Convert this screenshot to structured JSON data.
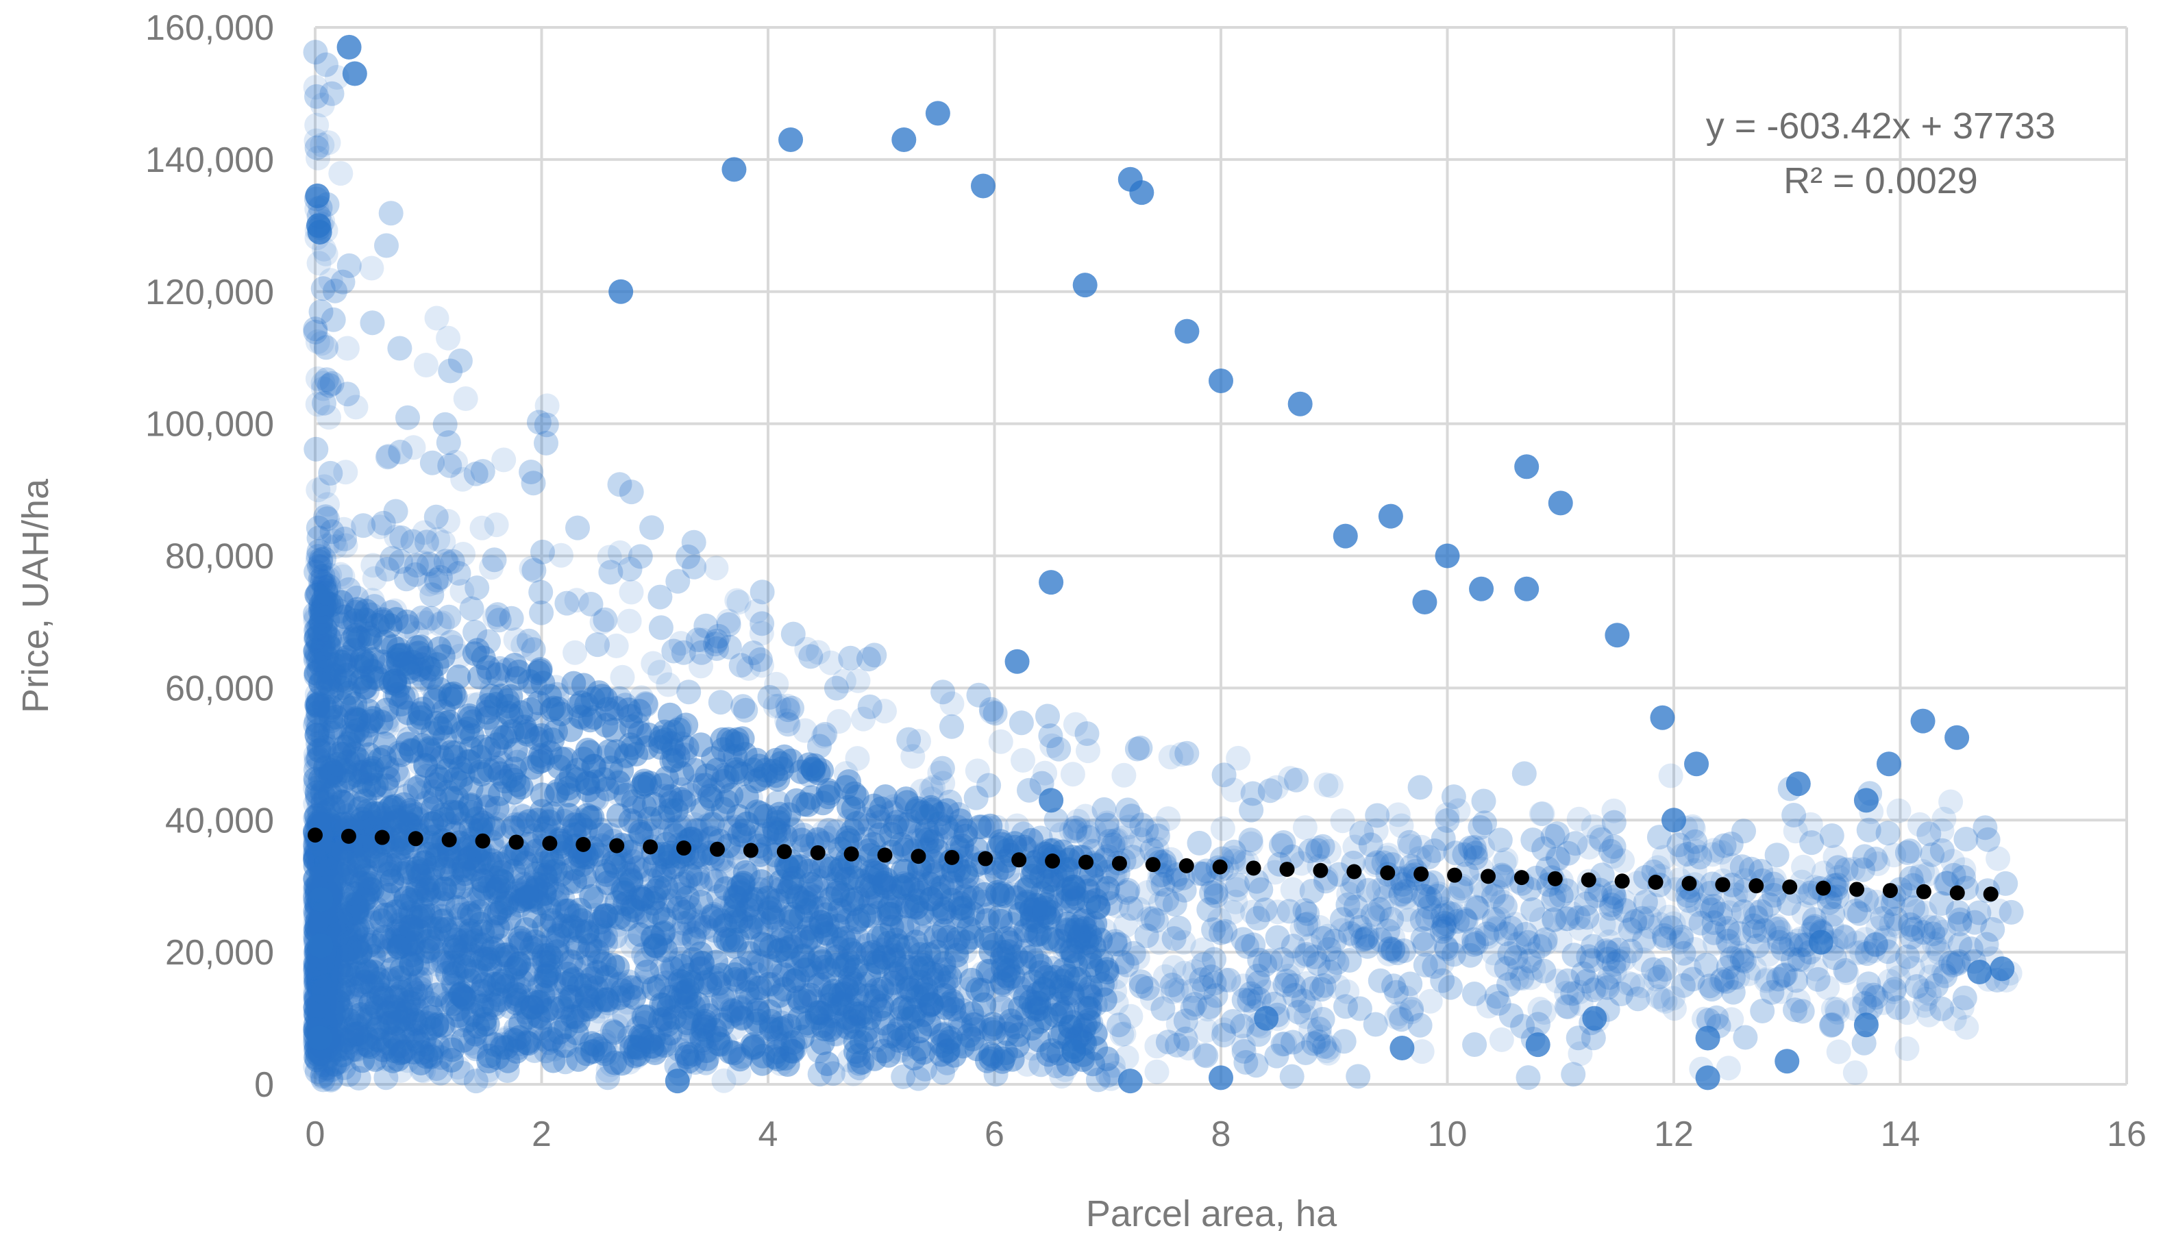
{
  "chart_data": {
    "type": "scatter",
    "title": "",
    "xlabel": "Parcel area, ha",
    "ylabel": "Price, UAH/ha",
    "xlim": [
      0,
      16
    ],
    "ylim": [
      0,
      160000
    ],
    "x_ticks": [
      0,
      2,
      4,
      6,
      8,
      10,
      12,
      14,
      16
    ],
    "y_ticks": [
      0,
      20000,
      40000,
      60000,
      80000,
      100000,
      120000,
      140000,
      160000
    ],
    "x_tick_labels": [
      "0",
      "2",
      "4",
      "6",
      "8",
      "10",
      "12",
      "14",
      "16"
    ],
    "y_tick_labels": [
      "0",
      "20,000",
      "40,000",
      "60,000",
      "80,000",
      "100,000",
      "120,000",
      "140,000",
      "160,000"
    ],
    "grid": true,
    "point_color": "#2a74c8",
    "trend_color": "#000000",
    "series": [
      {
        "points": [
          [
            0.02,
            134500
          ],
          [
            0.03,
            130000
          ],
          [
            0.04,
            129000
          ],
          [
            0.05,
            28000
          ],
          [
            0.05,
            21000
          ],
          [
            0.04,
            7000
          ],
          [
            0.3,
            157000
          ],
          [
            0.35,
            153000
          ],
          [
            3.7,
            138500
          ],
          [
            4.2,
            143000
          ],
          [
            2.7,
            120000
          ],
          [
            6.5,
            43000
          ],
          [
            6.2,
            64000
          ],
          [
            6.5,
            76000
          ],
          [
            10.7,
            93500
          ],
          [
            11,
            88000
          ],
          [
            10.7,
            75000
          ],
          [
            11.5,
            68000
          ],
          [
            14.2,
            55000
          ],
          [
            14.5,
            52500
          ],
          [
            13.9,
            48500
          ],
          [
            13.7,
            43000
          ],
          [
            14.7,
            17000
          ],
          [
            14.9,
            17500
          ],
          [
            13.7,
            9000
          ],
          [
            13.3,
            21500
          ],
          [
            13.1,
            45500
          ],
          [
            12.2,
            48500
          ],
          [
            11.9,
            55500
          ],
          [
            12.3,
            1000
          ],
          [
            7.2,
            500
          ],
          [
            8.0,
            1000
          ],
          [
            3.2,
            500
          ],
          [
            6.7,
            5000
          ],
          [
            7.2,
            137000
          ],
          [
            7.3,
            135000
          ],
          [
            7.7,
            114000
          ],
          [
            8.0,
            106500
          ],
          [
            8.7,
            103000
          ],
          [
            6.8,
            121000
          ],
          [
            5.9,
            136000
          ],
          [
            5.5,
            147000
          ],
          [
            5.2,
            143000
          ],
          [
            9.1,
            83000
          ],
          [
            9.5,
            86000
          ],
          [
            10.0,
            80000
          ],
          [
            10.3,
            75000
          ],
          [
            9.8,
            73000
          ],
          [
            12.0,
            40000
          ],
          [
            13.0,
            3500
          ],
          [
            12.3,
            7000
          ],
          [
            11.3,
            10000
          ],
          [
            10.8,
            6000
          ],
          [
            9.6,
            5500
          ],
          [
            8.4,
            10000
          ]
        ]
      }
    ],
    "trendline": {
      "slope": -603.42,
      "intercept": 37733,
      "x_range": [
        0,
        14.8
      ]
    },
    "equation_line1": "y = -603.42x + 37733",
    "equation_line2": "R² = 0.0029"
  }
}
